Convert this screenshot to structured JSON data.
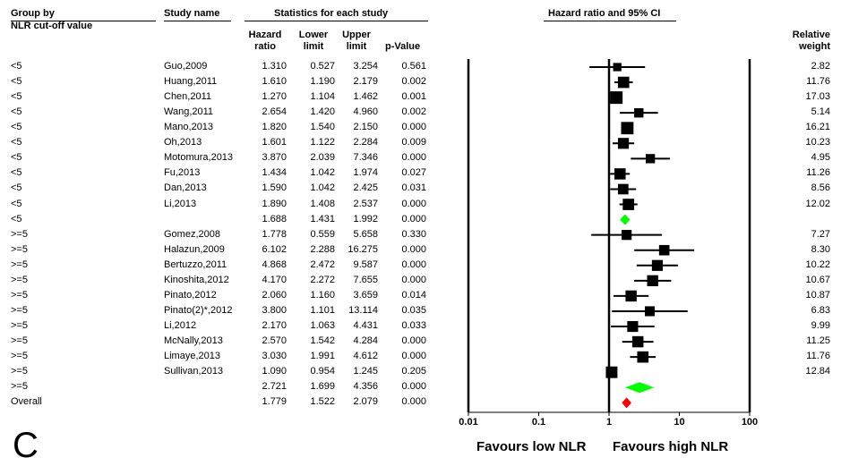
{
  "headers": {
    "group_by": "Group by",
    "cutoff": "NLR cut-off value",
    "study_name": "Study name",
    "stats_title": "Statistics for each study",
    "hazard": "Hazard",
    "ratio": "ratio",
    "lower": "Lower",
    "upper": "Upper",
    "limit": "limit",
    "pvalue": "p-Value",
    "plot_title": "Hazard ratio and 95% CI",
    "relative": "Relative",
    "weight": "weight"
  },
  "footer": {
    "favours_low": "Favours low NLR",
    "favours_high": "Favours high NLR"
  },
  "panel_label": "C",
  "colors": {
    "subgroup_diamond": "#00ff00",
    "overall_diamond": "#ff0000",
    "marker": "#000000"
  },
  "chart_data": {
    "type": "forest",
    "title": "Hazard ratio and 95% CI",
    "x_scale": "log",
    "xlim": [
      0.01,
      100
    ],
    "x_ticks": [
      "0.01",
      "0.1",
      "1",
      "10",
      "100"
    ],
    "rows": [
      {
        "group": "<5",
        "study": "Guo,2009",
        "hr": "1.310",
        "lo": "0.527",
        "hi": "3.254",
        "p": "0.561",
        "weight": "2.82",
        "kind": "study"
      },
      {
        "group": "<5",
        "study": "Huang,2011",
        "hr": "1.610",
        "lo": "1.190",
        "hi": "2.179",
        "p": "0.002",
        "weight": "11.76",
        "kind": "study"
      },
      {
        "group": "<5",
        "study": "Chen,2011",
        "hr": "1.270",
        "lo": "1.104",
        "hi": "1.462",
        "p": "0.001",
        "weight": "17.03",
        "kind": "study"
      },
      {
        "group": "<5",
        "study": "Wang,2011",
        "hr": "2.654",
        "lo": "1.420",
        "hi": "4.960",
        "p": "0.002",
        "weight": "5.14",
        "kind": "study"
      },
      {
        "group": "<5",
        "study": "Mano,2013",
        "hr": "1.820",
        "lo": "1.540",
        "hi": "2.150",
        "p": "0.000",
        "weight": "16.21",
        "kind": "study"
      },
      {
        "group": "<5",
        "study": "Oh,2013",
        "hr": "1.601",
        "lo": "1.122",
        "hi": "2.284",
        "p": "0.009",
        "weight": "10.23",
        "kind": "study"
      },
      {
        "group": "<5",
        "study": "Motomura,2013",
        "hr": "3.870",
        "lo": "2.039",
        "hi": "7.346",
        "p": "0.000",
        "weight": "4.95",
        "kind": "study"
      },
      {
        "group": "<5",
        "study": "Fu,2013",
        "hr": "1.434",
        "lo": "1.042",
        "hi": "1.974",
        "p": "0.027",
        "weight": "11.26",
        "kind": "study"
      },
      {
        "group": "<5",
        "study": "Dan,2013",
        "hr": "1.590",
        "lo": "1.042",
        "hi": "2.425",
        "p": "0.031",
        "weight": "8.56",
        "kind": "study"
      },
      {
        "group": "<5",
        "study": "Li,2013",
        "hr": "1.890",
        "lo": "1.408",
        "hi": "2.537",
        "p": "0.000",
        "weight": "12.02",
        "kind": "study"
      },
      {
        "group": "<5",
        "study": "",
        "hr": "1.688",
        "lo": "1.431",
        "hi": "1.992",
        "p": "0.000",
        "weight": "",
        "kind": "subtotal"
      },
      {
        "group": ">=5",
        "study": "Gomez,2008",
        "hr": "1.778",
        "lo": "0.559",
        "hi": "5.658",
        "p": "0.330",
        "weight": "7.27",
        "kind": "study"
      },
      {
        "group": ">=5",
        "study": "Halazun,2009",
        "hr": "6.102",
        "lo": "2.288",
        "hi": "16.275",
        "p": "0.000",
        "weight": "8.30",
        "kind": "study"
      },
      {
        "group": ">=5",
        "study": "Bertuzzo,2011",
        "hr": "4.868",
        "lo": "2.472",
        "hi": "9.587",
        "p": "0.000",
        "weight": "10.22",
        "kind": "study"
      },
      {
        "group": ">=5",
        "study": "Kinoshita,2012",
        "hr": "4.170",
        "lo": "2.272",
        "hi": "7.655",
        "p": "0.000",
        "weight": "10.67",
        "kind": "study"
      },
      {
        "group": ">=5",
        "study": "Pinato,2012",
        "hr": "2.060",
        "lo": "1.160",
        "hi": "3.659",
        "p": "0.014",
        "weight": "10.87",
        "kind": "study"
      },
      {
        "group": ">=5",
        "study": "Pinato(2)*,2012",
        "hr": "3.800",
        "lo": "1.101",
        "hi": "13.114",
        "p": "0.035",
        "weight": "6.83",
        "kind": "study"
      },
      {
        "group": ">=5",
        "study": "Li,2012",
        "hr": "2.170",
        "lo": "1.063",
        "hi": "4.431",
        "p": "0.033",
        "weight": "9.99",
        "kind": "study"
      },
      {
        "group": ">=5",
        "study": "McNally,2013",
        "hr": "2.570",
        "lo": "1.542",
        "hi": "4.284",
        "p": "0.000",
        "weight": "11.25",
        "kind": "study"
      },
      {
        "group": ">=5",
        "study": "Limaye,2013",
        "hr": "3.030",
        "lo": "1.991",
        "hi": "4.612",
        "p": "0.000",
        "weight": "11.76",
        "kind": "study"
      },
      {
        "group": ">=5",
        "study": "Sullivan,2013",
        "hr": "1.090",
        "lo": "0.954",
        "hi": "1.245",
        "p": "0.205",
        "weight": "12.84",
        "kind": "study"
      },
      {
        "group": ">=5",
        "study": "",
        "hr": "2.721",
        "lo": "1.699",
        "hi": "4.356",
        "p": "0.000",
        "weight": "",
        "kind": "subtotal"
      },
      {
        "group": "Overall",
        "study": "",
        "hr": "1.779",
        "lo": "1.522",
        "hi": "2.079",
        "p": "0.000",
        "weight": "",
        "kind": "overall"
      }
    ]
  }
}
